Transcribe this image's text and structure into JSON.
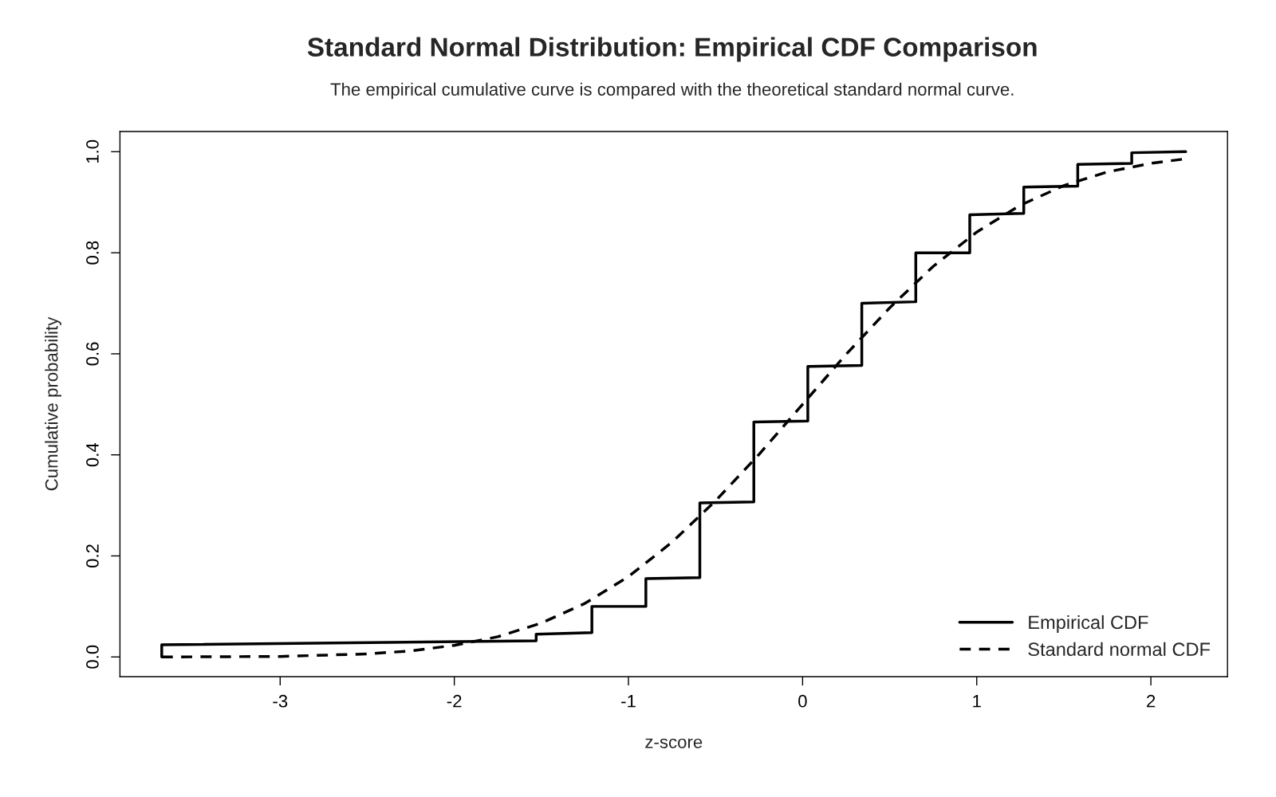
{
  "chart_data": {
    "type": "line",
    "title": "Standard Normal Distribution: Empirical CDF Comparison",
    "subtitle": "The empirical cumulative curve is compared with the theoretical standard normal curve.",
    "xlabel": "z-score",
    "ylabel": "Cumulative probability",
    "xlim": [
      -3.92,
      2.44
    ],
    "ylim": [
      -0.039,
      1.04
    ],
    "xticks": [
      -3,
      -2,
      -1,
      0,
      1,
      2
    ],
    "yticks": [
      {
        "value": 0,
        "label": "0.0"
      },
      {
        "value": 0.2,
        "label": "0.2"
      },
      {
        "value": 0.4,
        "label": "0.4"
      },
      {
        "value": 0.6,
        "label": "0.6"
      },
      {
        "value": 0.8,
        "label": "0.8"
      },
      {
        "value": 1,
        "label": "1.0"
      }
    ],
    "grid": false,
    "legend": "bottom right",
    "series": [
      {
        "name": "Empirical CDF",
        "color": "#000000",
        "line_style": "solid",
        "x": [
          -3.68,
          -3.68,
          -1.53,
          -1.53,
          -1.21,
          -1.21,
          -0.9,
          -0.9,
          -0.59,
          -0.59,
          -0.28,
          -0.28,
          0.03,
          0.03,
          0.34,
          0.34,
          0.65,
          0.65,
          0.96,
          0.96,
          1.27,
          1.27,
          1.58,
          1.58,
          1.89,
          1.89,
          2.2
        ],
        "values": [
          0,
          0.024,
          0.032,
          0.045,
          0.048,
          0.1,
          0.1,
          0.155,
          0.157,
          0.305,
          0.307,
          0.465,
          0.467,
          0.575,
          0.577,
          0.7,
          0.703,
          0.8,
          0.8,
          0.875,
          0.878,
          0.93,
          0.932,
          0.975,
          0.977,
          0.998,
          1.0
        ]
      },
      {
        "name": "Standard normal CDF",
        "color": "#000000",
        "line_style": "dashed",
        "x": [
          -3.68,
          -3.0,
          -2.5,
          -2.25,
          -2.0,
          -1.75,
          -1.5,
          -1.25,
          -1.0,
          -0.75,
          -0.5,
          -0.25,
          0.0,
          0.25,
          0.5,
          0.75,
          1.0,
          1.25,
          1.5,
          1.75,
          2.0,
          2.2
        ],
        "values": [
          0.0,
          0.001,
          0.006,
          0.012,
          0.023,
          0.04,
          0.067,
          0.106,
          0.159,
          0.227,
          0.309,
          0.401,
          0.5,
          0.599,
          0.691,
          0.773,
          0.841,
          0.894,
          0.933,
          0.96,
          0.977,
          0.986
        ]
      }
    ]
  }
}
